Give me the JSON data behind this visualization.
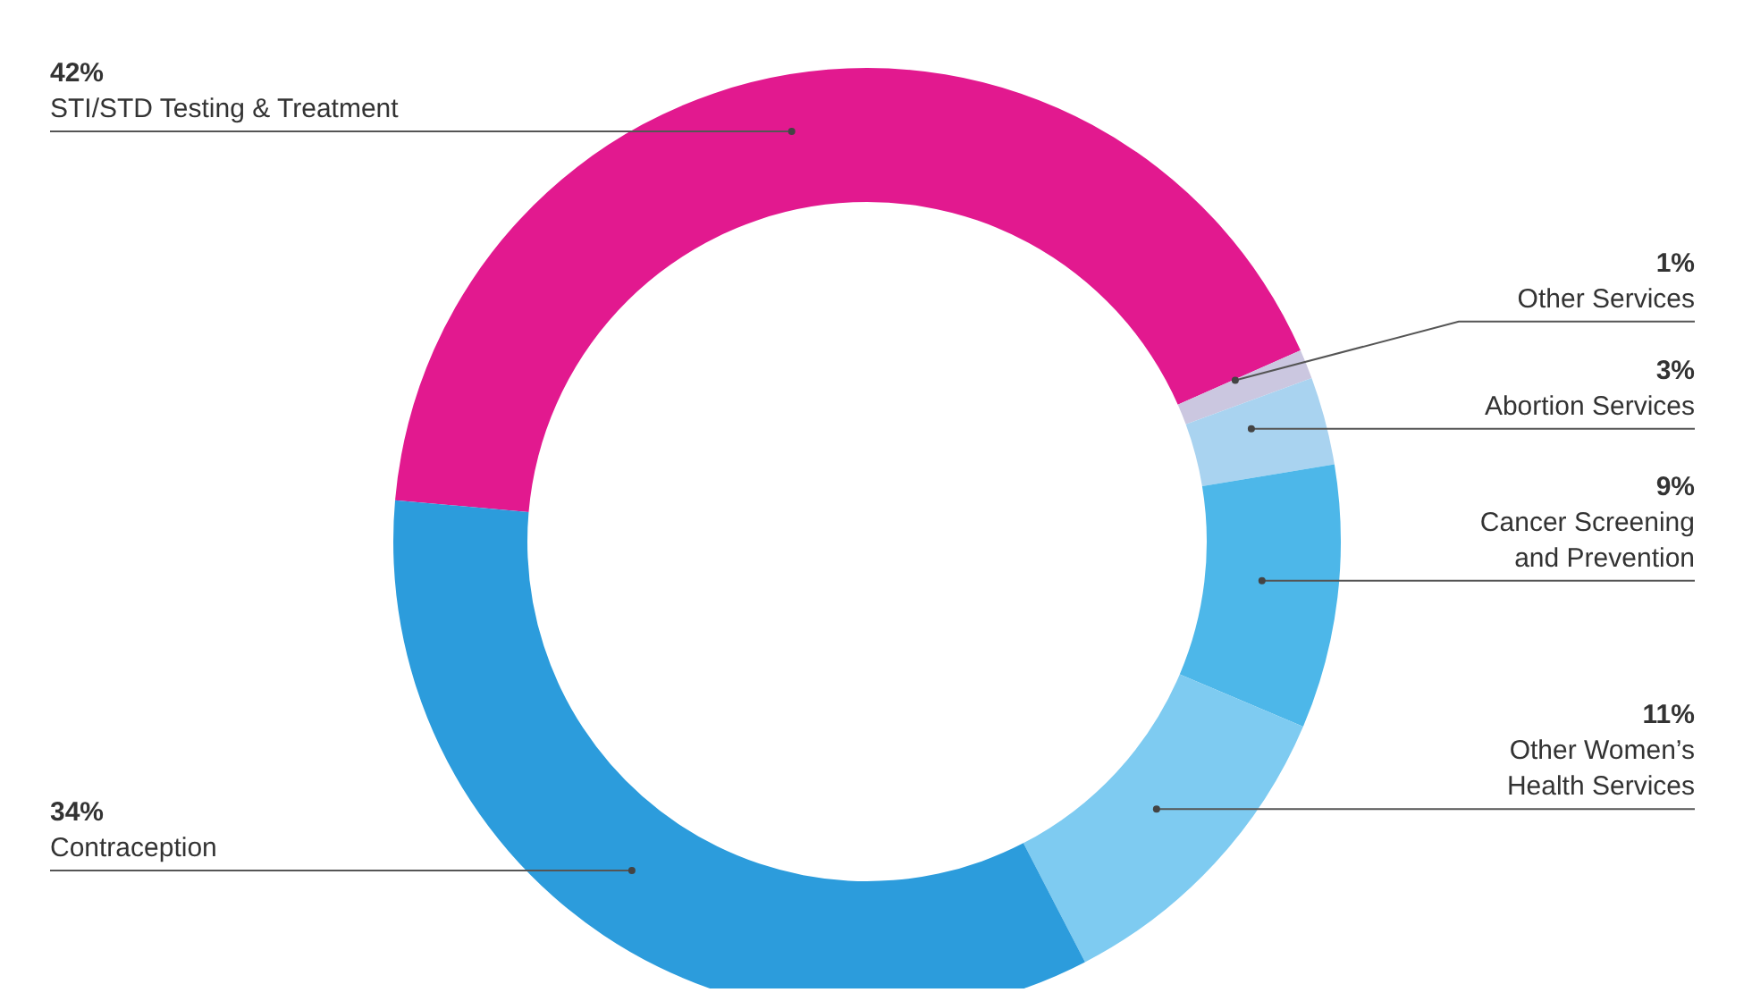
{
  "chart_data": {
    "type": "donut",
    "categories": [
      "STI/STD Testing & Treatment",
      "Other Services",
      "Abortion Services",
      "Cancer Screening and Prevention",
      "Other Women’s Health Services",
      "Contraception"
    ],
    "values": [
      42,
      1,
      3,
      9,
      11,
      34
    ],
    "value_labels": [
      "42%",
      "1%",
      "3%",
      "9%",
      "11%",
      "34%"
    ],
    "colors": [
      "#e2198f",
      "#cbc7e0",
      "#a9d3f0",
      "#4db7e9",
      "#7ecbf1",
      "#2c9cdc"
    ],
    "legend": false
  }
}
